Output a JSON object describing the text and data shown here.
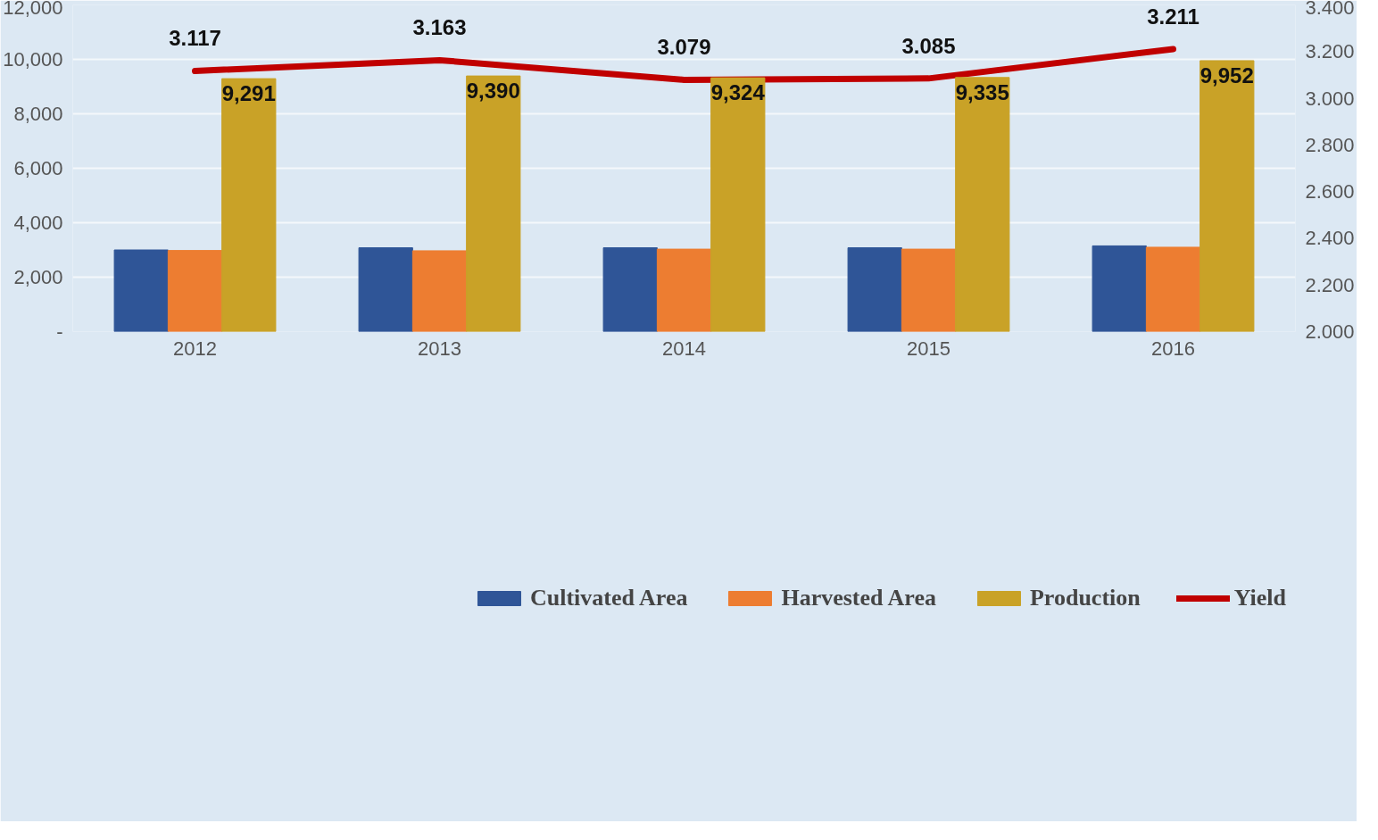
{
  "chart_data": {
    "type": "bar",
    "categories": [
      "2012",
      "2013",
      "2014",
      "2015",
      "2016"
    ],
    "series": [
      {
        "name": "Cultivated Area",
        "color": "#2f5597",
        "values": [
          3000,
          3080,
          3080,
          3080,
          3150
        ]
      },
      {
        "name": "Harvested Area",
        "color": "#ed7d31",
        "values": [
          2980,
          2970,
          3030,
          3030,
          3100
        ]
      },
      {
        "name": "Production",
        "color": "#c9a227",
        "values": [
          9291,
          9390,
          9324,
          9335,
          9952
        ],
        "value_labels": [
          "9,291",
          "9,390",
          "9,324",
          "9,335",
          "9,952"
        ]
      },
      {
        "name": "Yield",
        "type": "line",
        "axis": "y2",
        "color": "#c00000",
        "values": [
          3.117,
          3.163,
          3.079,
          3.085,
          3.211
        ],
        "value_labels": [
          "3.117",
          "3.163",
          "3.079",
          "3.085",
          "3.211"
        ]
      }
    ],
    "ylim": [
      0,
      12000
    ],
    "yticks": [
      {
        "value": 0,
        "label": "-"
      },
      {
        "value": 2000,
        "label": "2,000"
      },
      {
        "value": 4000,
        "label": "4,000"
      },
      {
        "value": 6000,
        "label": "6,000"
      },
      {
        "value": 8000,
        "label": "8,000"
      },
      {
        "value": 10000,
        "label": "10,000"
      },
      {
        "value": 12000,
        "label": "12,000"
      }
    ],
    "y2lim": [
      2.0,
      3.4
    ],
    "y2ticks": [
      {
        "value": 2.0,
        "label": "2.000"
      },
      {
        "value": 2.2,
        "label": "2.200"
      },
      {
        "value": 2.4,
        "label": "2.400"
      },
      {
        "value": 2.6,
        "label": "2.600"
      },
      {
        "value": 2.8,
        "label": "2.800"
      },
      {
        "value": 3.0,
        "label": "3.000"
      },
      {
        "value": 3.2,
        "label": "3.200"
      },
      {
        "value": 3.4,
        "label": "3.400"
      }
    ],
    "grid": "y",
    "legend": "bottom",
    "marker": "none",
    "line_style": "solid"
  }
}
